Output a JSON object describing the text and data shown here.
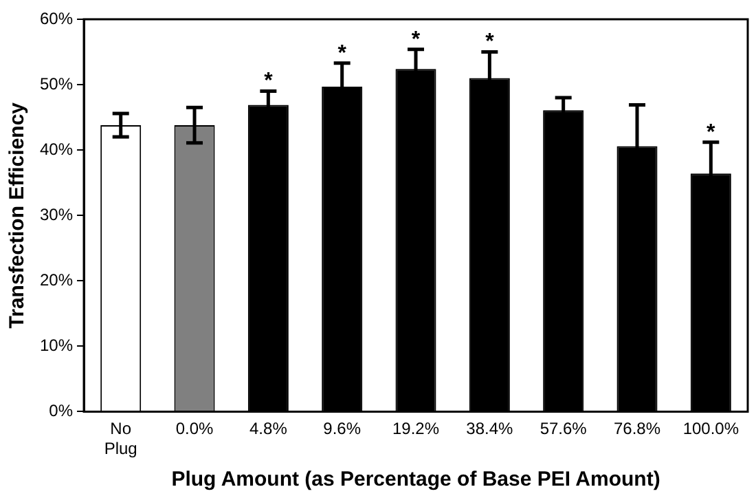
{
  "chart_data": {
    "type": "bar",
    "xlabel": "Plug Amount (as Percentage of Base PEI Amount)",
    "ylabel": "Transfection Efficiency",
    "categories": [
      "No Plug",
      "0.0%",
      "4.8%",
      "9.6%",
      "19.2%",
      "38.4%",
      "57.6%",
      "76.8%",
      "100.0%"
    ],
    "values": [
      43.8,
      43.8,
      46.9,
      49.7,
      52.4,
      51.0,
      46.1,
      40.6,
      36.4
    ],
    "errors": [
      1.8,
      2.7,
      2.1,
      3.6,
      3.0,
      4.0,
      1.9,
      6.3,
      4.8
    ],
    "colors": [
      "#ffffff",
      "#808080",
      "#000000",
      "#000000",
      "#000000",
      "#000000",
      "#000000",
      "#000000",
      "#000000"
    ],
    "ylim": [
      0,
      60
    ],
    "yticks": [
      {
        "value": 0,
        "label": "0%"
      },
      {
        "value": 10,
        "label": "10%"
      },
      {
        "value": 20,
        "label": "20%"
      },
      {
        "value": 30,
        "label": "30%"
      },
      {
        "value": 40,
        "label": "40%"
      },
      {
        "value": 50,
        "label": "50%"
      },
      {
        "value": 60,
        "label": "60%"
      }
    ],
    "annotations": [
      {
        "text": "*",
        "x": "4.8%",
        "y": 46.9
      },
      {
        "text": "*",
        "x": "9.6%",
        "y": 49.7
      },
      {
        "text": "*",
        "x": "19.2%",
        "y": 52.4
      },
      {
        "text": "*",
        "x": "38.4%",
        "y": 51.0
      },
      {
        "text": "*",
        "x": "100.0%",
        "y": 36.4
      }
    ],
    "grid": false,
    "legend": false
  }
}
